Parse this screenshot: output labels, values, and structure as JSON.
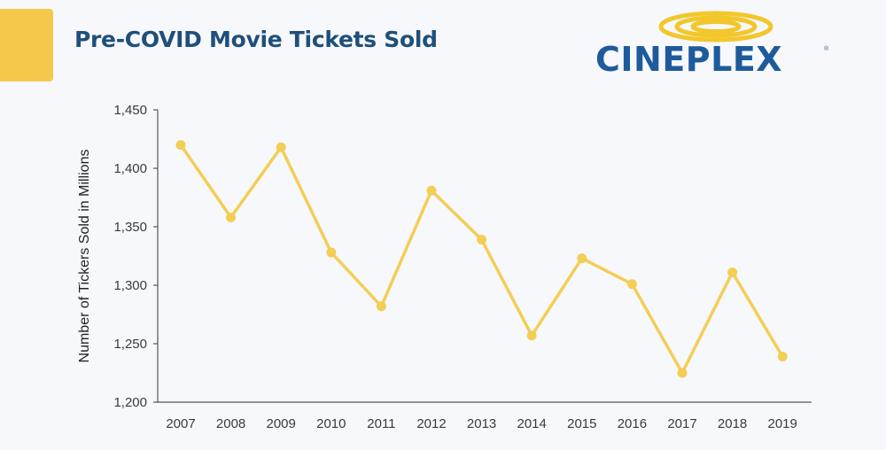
{
  "header": {
    "title": "Pre-COVID Movie Tickets Sold",
    "title_color": "#1f4f7a",
    "accent_color": "#f5c84c"
  },
  "logo": {
    "text": "CINEPLEX",
    "registered_mark": "®",
    "text_color": "#1e5b9c",
    "ring_color": "#f2c72c"
  },
  "chart_data": {
    "type": "line",
    "title": "",
    "xlabel": "",
    "ylabel": "Number of Tickers Sold in Millions",
    "categories": [
      "2007",
      "2008",
      "2009",
      "2010",
      "2011",
      "2012",
      "2013",
      "2014",
      "2015",
      "2016",
      "2017",
      "2018",
      "2019"
    ],
    "series": [
      {
        "values": [
          1420,
          1358,
          1418,
          1328,
          1282,
          1381,
          1339,
          1257,
          1323,
          1301,
          1225,
          1311,
          1239
        ]
      }
    ],
    "ylim": [
      1200,
      1450
    ],
    "yticks": [
      1200,
      1250,
      1300,
      1350,
      1400,
      1450
    ],
    "ytick_labels": [
      "1,200",
      "1,250",
      "1,300",
      "1,350",
      "1,400",
      "1,450"
    ],
    "grid": false,
    "legend": "none",
    "line_color": "#f3ce55",
    "axis_color": "#555555"
  }
}
